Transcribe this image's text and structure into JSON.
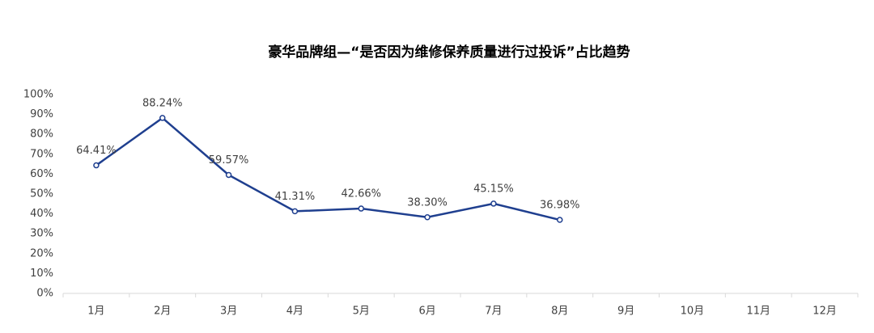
{
  "chart_data": {
    "type": "line",
    "title": "豪华品牌组—“是否因为维修保养质量进行过投诉”占比趋势",
    "categories": [
      "1月",
      "2月",
      "3月",
      "4月",
      "5月",
      "6月",
      "7月",
      "8月",
      "9月",
      "10月",
      "11月",
      "12月"
    ],
    "series": [
      {
        "name": "占比",
        "color": "#1f3f8f",
        "values": [
          64.41,
          88.24,
          59.57,
          41.31,
          42.66,
          38.3,
          45.15,
          36.98,
          null,
          null,
          null,
          null
        ],
        "value_labels": [
          "64.41%",
          "88.24%",
          "59.57%",
          "41.31%",
          "42.66%",
          "38.30%",
          "45.15%",
          "36.98%",
          null,
          null,
          null,
          null
        ]
      }
    ],
    "ylim": [
      0,
      100
    ],
    "yticks": [
      {
        "value": 0,
        "label": "0%"
      },
      {
        "value": 10,
        "label": "10%"
      },
      {
        "value": 20,
        "label": "20%"
      },
      {
        "value": 30,
        "label": "30%"
      },
      {
        "value": 40,
        "label": "40%"
      },
      {
        "value": 50,
        "label": "50%"
      },
      {
        "value": 60,
        "label": "60%"
      },
      {
        "value": 70,
        "label": "70%"
      },
      {
        "value": 80,
        "label": "80%"
      },
      {
        "value": 90,
        "label": "90%"
      },
      {
        "value": 100,
        "label": "100%"
      }
    ],
    "grid": false
  }
}
